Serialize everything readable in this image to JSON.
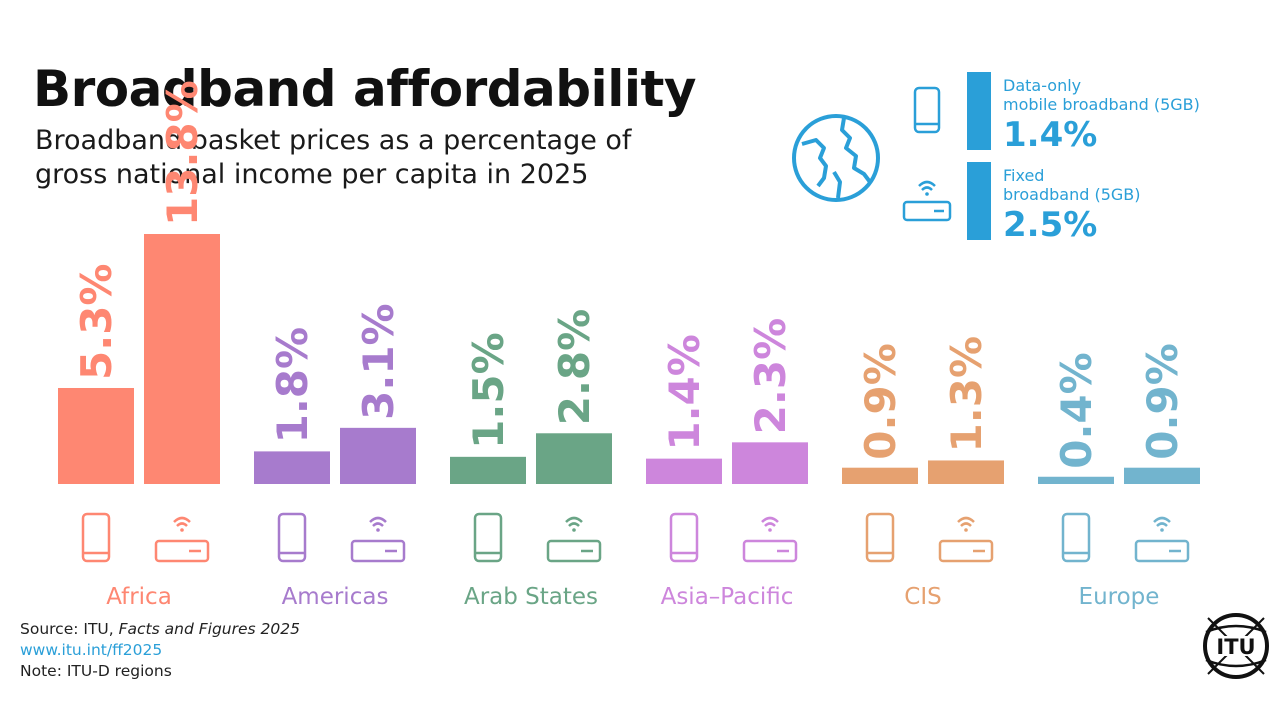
{
  "header": {
    "title": "Broadband affordability",
    "subtitle_line1": "Broadband basket prices as a percentage of",
    "subtitle_line2": "gross national income per capita in 2025"
  },
  "legend": {
    "mobile_label_line1": "Data-only",
    "mobile_label_line2": "mobile broadband (5GB)",
    "mobile_value": "1.4%",
    "fixed_label_line1": "Fixed",
    "fixed_label_line2": "broadband (5GB)",
    "fixed_value": "2.5%",
    "color": "#2a9fd8"
  },
  "chart_data": {
    "type": "bar",
    "title": "Broadband affordability",
    "subtitle": "Broadband basket prices as a percentage of gross national income per capita in 2025",
    "unit": "%",
    "categories": [
      "Africa",
      "Americas",
      "Arab States",
      "Asia-Pacific",
      "CIS",
      "Europe"
    ],
    "series": [
      {
        "name": "Data-only mobile broadband (5GB)",
        "values": [
          5.3,
          1.8,
          1.5,
          1.4,
          0.9,
          0.4
        ]
      },
      {
        "name": "Fixed broadband (5GB)",
        "values": [
          13.8,
          3.1,
          2.8,
          2.3,
          1.3,
          0.9
        ]
      }
    ],
    "labels": [
      [
        "5.3%",
        "13.8%"
      ],
      [
        "1.8%",
        "3.1%"
      ],
      [
        "1.5%",
        "2.8%"
      ],
      [
        "1.4%",
        "2.3%"
      ],
      [
        "0.9%",
        "1.3%"
      ],
      [
        "0.4%",
        "0.9%"
      ]
    ],
    "category_labels": [
      "Africa",
      "Americas",
      "Arab States",
      "Asia–Pacific",
      "CIS",
      "Europe"
    ],
    "colors": [
      "#fe8772",
      "#a77bcd",
      "#6aa586",
      "#cd86dc",
      "#e6a170",
      "#72b4ce"
    ],
    "world": {
      "mobile": 1.4,
      "fixed": 2.5
    },
    "ylim": [
      0,
      13.8
    ]
  },
  "footer": {
    "source_prefix": "Source: ITU, ",
    "source_title": "Facts and Figures 2025",
    "url": "www.itu.int/ff2025",
    "note": "Note: ITU-D regions",
    "logo_text": "ITU"
  }
}
